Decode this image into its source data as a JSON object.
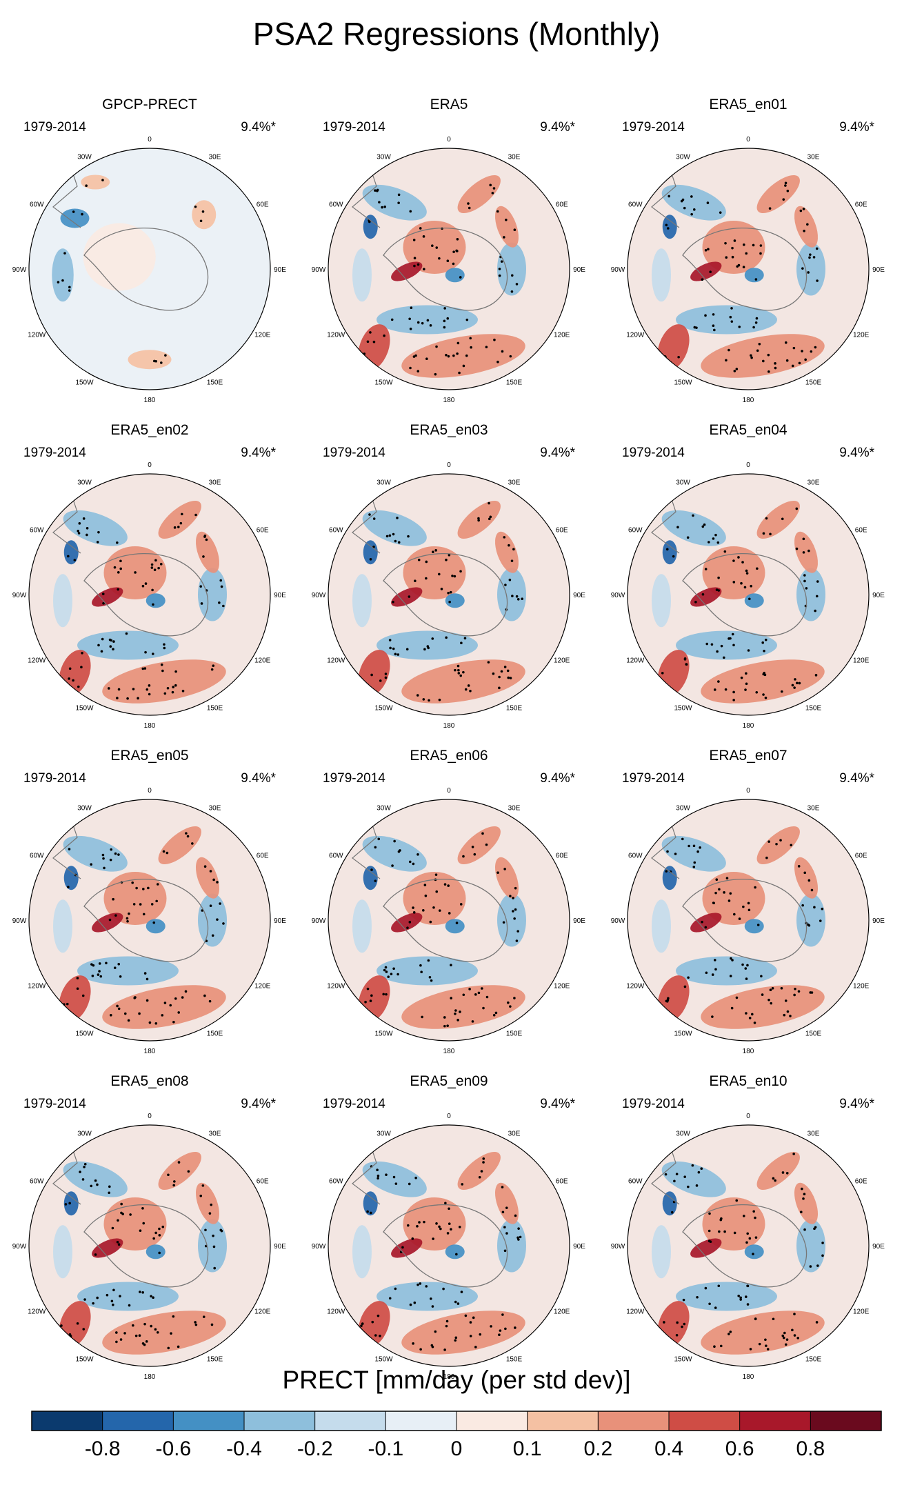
{
  "title": "PSA2 Regressions (Monthly)",
  "panels": [
    {
      "name": "GPCP-PRECT",
      "years": "1979-2014",
      "pct": "9.4%*"
    },
    {
      "name": "ERA5",
      "years": "1979-2014",
      "pct": "9.4%*"
    },
    {
      "name": "ERA5_en01",
      "years": "1979-2014",
      "pct": "9.4%*"
    },
    {
      "name": "ERA5_en02",
      "years": "1979-2014",
      "pct": "9.4%*"
    },
    {
      "name": "ERA5_en03",
      "years": "1979-2014",
      "pct": "9.4%*"
    },
    {
      "name": "ERA5_en04",
      "years": "1979-2014",
      "pct": "9.4%*"
    },
    {
      "name": "ERA5_en05",
      "years": "1979-2014",
      "pct": "9.4%*"
    },
    {
      "name": "ERA5_en06",
      "years": "1979-2014",
      "pct": "9.4%*"
    },
    {
      "name": "ERA5_en07",
      "years": "1979-2014",
      "pct": "9.4%*"
    },
    {
      "name": "ERA5_en08",
      "years": "1979-2014",
      "pct": "9.4%*"
    },
    {
      "name": "ERA5_en09",
      "years": "1979-2014",
      "pct": "9.4%*"
    },
    {
      "name": "ERA5_en10",
      "years": "1979-2014",
      "pct": "9.4%*"
    }
  ],
  "lon_labels": [
    "0",
    "30E",
    "60E",
    "90E",
    "120E",
    "150E",
    "180",
    "150W",
    "120W",
    "90W",
    "60W",
    "30W"
  ],
  "colorbar": {
    "title": "PRECT [mm/day (per std dev)]",
    "tick_labels": [
      "-0.8",
      "-0.6",
      "-0.4",
      "-0.2",
      "-0.1",
      "0",
      "0.1",
      "0.2",
      "0.4",
      "0.6",
      "0.8"
    ],
    "colors": [
      "#0b3a6e",
      "#2466ab",
      "#4490c4",
      "#8ebfdc",
      "#c5dcec",
      "#e7eff6",
      "#faeae2",
      "#f5c1a3",
      "#e8917a",
      "#cf4d45",
      "#a8182a",
      "#6a0a1e"
    ]
  }
}
